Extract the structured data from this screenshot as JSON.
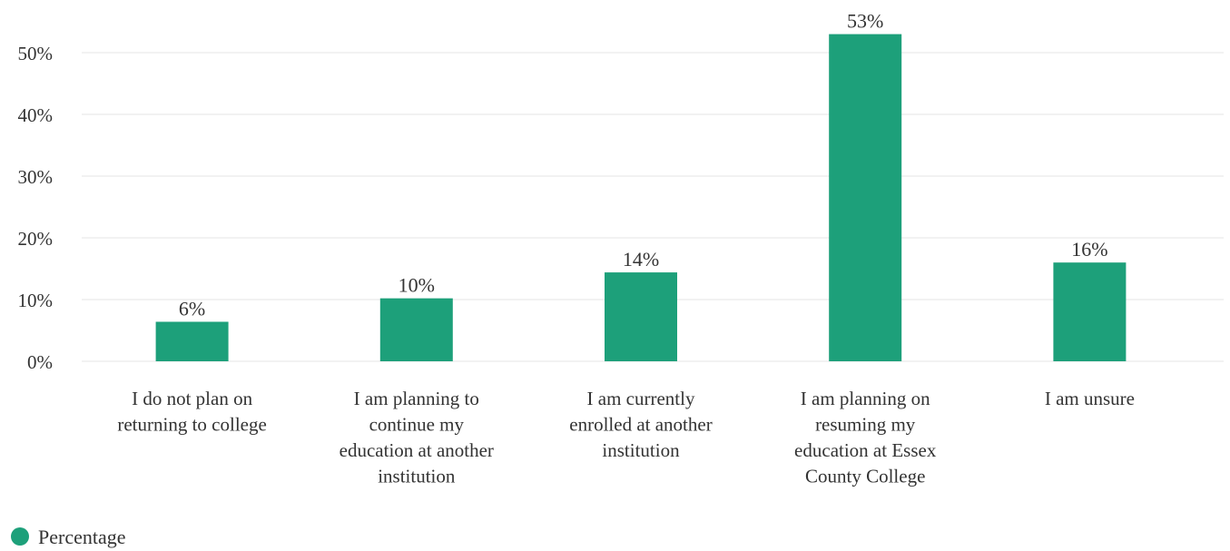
{
  "chart_data": {
    "type": "bar",
    "categories": [
      [
        "I do not plan on",
        "returning to college"
      ],
      [
        "I am planning to",
        "continue my",
        "education at another",
        "institution"
      ],
      [
        "I am currently",
        "enrolled at another",
        "institution"
      ],
      [
        "I am planning on",
        "resuming my",
        "education at Essex",
        "County College"
      ],
      [
        "I am unsure"
      ]
    ],
    "series": [
      {
        "name": "Percentage",
        "values": [
          6.4,
          10.2,
          14.4,
          53,
          16
        ],
        "labels": [
          "6%",
          "10%",
          "14%",
          "53%",
          "16%"
        ]
      }
    ],
    "yticks": [
      0,
      10,
      20,
      30,
      40,
      50
    ],
    "ytick_labels": [
      "0%",
      "10%",
      "20%",
      "30%",
      "40%",
      "50%"
    ],
    "ylim": [
      0,
      55
    ],
    "grid": true,
    "legend_position": "bottom-left",
    "colors": {
      "bar": "#1da07a",
      "grid": "#e6e6e6",
      "text": "#333333"
    }
  }
}
